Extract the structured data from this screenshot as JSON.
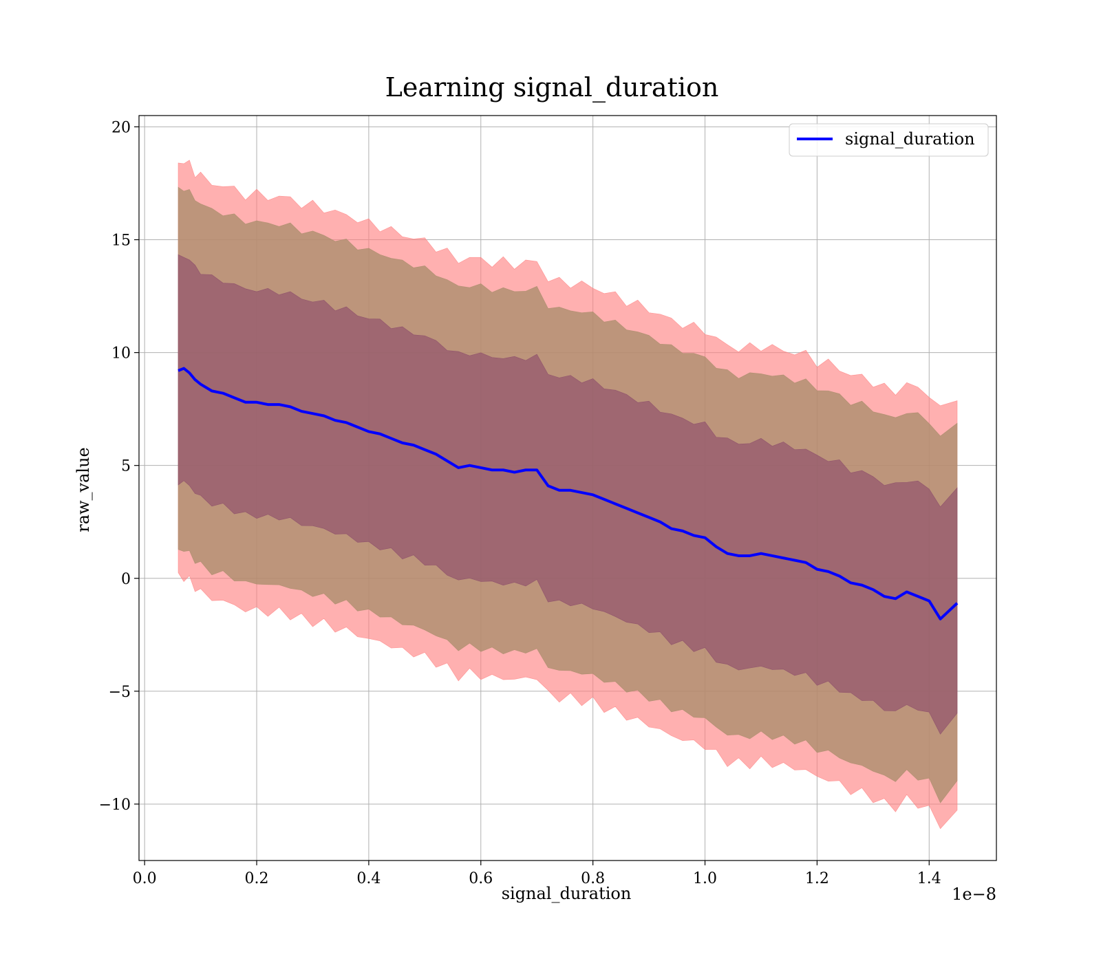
{
  "chart_data": {
    "type": "line",
    "title": "Learning signal_duration",
    "xlabel": "signal_duration",
    "ylabel": "raw_value",
    "x_offset_label": "1e−8",
    "xlim": [
      -0.01,
      1.52
    ],
    "ylim": [
      -12.5,
      20.5
    ],
    "grid": true,
    "legend_position": "upper right",
    "x_ticks": [
      {
        "value": 0.0,
        "label": "0.0"
      },
      {
        "value": 0.2,
        "label": "0.2"
      },
      {
        "value": 0.4,
        "label": "0.4"
      },
      {
        "value": 0.6,
        "label": "0.6"
      },
      {
        "value": 0.8,
        "label": "0.8"
      },
      {
        "value": 1.0,
        "label": "1.0"
      },
      {
        "value": 1.2,
        "label": "1.2"
      },
      {
        "value": 1.4,
        "label": "1.4"
      }
    ],
    "y_ticks": [
      {
        "value": -10,
        "label": "−10"
      },
      {
        "value": -5,
        "label": "−5"
      },
      {
        "value": 0,
        "label": "0"
      },
      {
        "value": 5,
        "label": "5"
      },
      {
        "value": 10,
        "label": "10"
      },
      {
        "value": 15,
        "label": "15"
      },
      {
        "value": 20,
        "label": "20"
      }
    ],
    "colors": {
      "line": "#0000ff",
      "band_3sigma": "#ff7f7f",
      "band_2sigma": "#a78c6a",
      "band_1sigma": "#8a4a6a"
    },
    "band_widths": [
      5,
      8,
      9.2
    ],
    "band_opacities": [
      0.62,
      0.75,
      0.6
    ],
    "series": [
      {
        "name": "signal_duration",
        "x": [
          0.06,
          0.07,
          0.08,
          0.09,
          0.1,
          0.12,
          0.14,
          0.16,
          0.18,
          0.2,
          0.22,
          0.24,
          0.26,
          0.28,
          0.3,
          0.32,
          0.34,
          0.36,
          0.38,
          0.4,
          0.42,
          0.44,
          0.46,
          0.48,
          0.5,
          0.52,
          0.54,
          0.56,
          0.58,
          0.6,
          0.62,
          0.64,
          0.66,
          0.68,
          0.7,
          0.72,
          0.74,
          0.76,
          0.78,
          0.8,
          0.82,
          0.84,
          0.86,
          0.88,
          0.9,
          0.92,
          0.94,
          0.96,
          0.98,
          1.0,
          1.02,
          1.04,
          1.06,
          1.08,
          1.1,
          1.12,
          1.14,
          1.16,
          1.18,
          1.2,
          1.22,
          1.24,
          1.26,
          1.28,
          1.3,
          1.32,
          1.34,
          1.36,
          1.38,
          1.4,
          1.42,
          1.45
        ],
        "y": [
          9.2,
          9.3,
          9.1,
          8.8,
          8.6,
          8.3,
          8.2,
          8.0,
          7.8,
          7.8,
          7.7,
          7.7,
          7.6,
          7.4,
          7.3,
          7.2,
          7.0,
          6.9,
          6.7,
          6.5,
          6.4,
          6.2,
          6.0,
          5.9,
          5.7,
          5.5,
          5.2,
          4.9,
          5.0,
          4.9,
          4.8,
          4.8,
          4.7,
          4.8,
          4.8,
          4.1,
          3.9,
          3.9,
          3.8,
          3.7,
          3.5,
          3.3,
          3.1,
          2.9,
          2.7,
          2.5,
          2.2,
          2.1,
          1.9,
          1.8,
          1.4,
          1.1,
          1.0,
          1.0,
          1.1,
          1.0,
          0.9,
          0.8,
          0.7,
          0.4,
          0.3,
          0.1,
          -0.2,
          -0.3,
          -0.5,
          -0.8,
          -0.9,
          -0.6,
          -0.8,
          -1.0,
          -1.8,
          -1.1
        ]
      }
    ]
  }
}
